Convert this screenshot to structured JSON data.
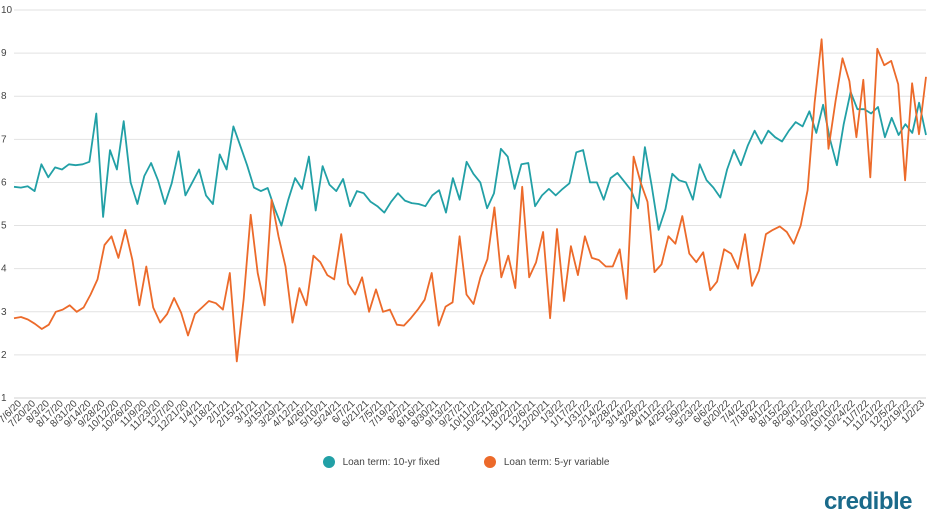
{
  "chart_data": {
    "type": "line",
    "ylim": [
      1,
      10
    ],
    "y_ticks": [
      "1",
      "2",
      "3",
      "4",
      "5",
      "6",
      "7",
      "8",
      "9",
      "10"
    ],
    "grid": true,
    "legend_position": "bottom",
    "x_tick_labels": [
      "7/6/20",
      "7/20/20",
      "8/3/20",
      "8/17/20",
      "8/31/20",
      "9/14/20",
      "9/28/20",
      "10/12/20",
      "10/26/20",
      "11/9/20",
      "11/23/20",
      "12/7/20",
      "12/21/20",
      "1/4/21",
      "1/18/21",
      "2/1/21",
      "2/15/21",
      "3/1/21",
      "3/15/21",
      "3/29/21",
      "4/12/21",
      "4/26/21",
      "5/10/21",
      "5/24/21",
      "6/7/21",
      "6/21/21",
      "7/5/21",
      "7/19/21",
      "8/2/21",
      "8/16/21",
      "8/30/21",
      "9/13/21",
      "9/27/21",
      "10/11/21",
      "10/25/21",
      "11/8/21",
      "11/22/21",
      "12/6/21",
      "12/20/21",
      "1/3/22",
      "1/17/22",
      "1/31/22",
      "2/14/22",
      "2/28/22",
      "3/14/22",
      "3/28/22",
      "4/11/22",
      "4/25/22",
      "5/9/22",
      "5/23/22",
      "6/6/22",
      "6/20/22",
      "7/4/22",
      "7/18/22",
      "8/1/22",
      "8/15/22",
      "8/29/22",
      "9/12/22",
      "9/26/22",
      "10/10/22",
      "10/24/22",
      "11/7/22",
      "11/21/22",
      "12/5/22",
      "12/19/22",
      "1/2/23"
    ],
    "series": [
      {
        "name": "Loan term: 10-yr fixed",
        "color": "#22a0a6",
        "values": [
          5.9,
          5.88,
          5.91,
          5.8,
          6.42,
          6.12,
          6.35,
          6.3,
          6.42,
          6.4,
          6.42,
          6.48,
          7.6,
          5.2,
          6.75,
          6.3,
          7.42,
          6.0,
          5.5,
          6.15,
          6.45,
          6.05,
          5.5,
          5.98,
          6.72,
          5.7,
          6.0,
          6.3,
          5.7,
          5.5,
          6.65,
          6.3,
          7.3,
          6.85,
          6.4,
          5.88,
          5.8,
          5.87,
          5.4,
          5.0,
          5.6,
          6.1,
          5.85,
          6.6,
          5.35,
          6.38,
          5.95,
          5.8,
          6.08,
          5.45,
          5.8,
          5.75,
          5.55,
          5.45,
          5.3,
          5.55,
          5.75,
          5.58,
          5.52,
          5.5,
          5.45,
          5.7,
          5.82,
          5.3,
          6.1,
          5.6,
          6.48,
          6.2,
          6.0,
          5.4,
          5.75,
          6.78,
          6.6,
          5.85,
          6.42,
          6.45,
          5.45,
          5.7,
          5.85,
          5.7,
          5.85,
          5.98,
          6.7,
          6.75,
          6.0,
          6.0,
          5.6,
          6.1,
          6.22,
          6.02,
          5.82,
          5.4,
          6.82,
          5.92,
          4.9,
          5.38,
          6.2,
          6.05,
          6.0,
          5.6,
          6.42,
          6.05,
          5.88,
          5.65,
          6.3,
          6.75,
          6.4,
          6.85,
          7.2,
          6.9,
          7.2,
          7.05,
          6.95,
          7.2,
          7.4,
          7.3,
          7.65,
          7.15,
          7.8,
          7.0,
          6.4,
          7.35,
          8.1,
          7.7,
          7.7,
          7.6,
          7.75,
          7.05,
          7.5,
          7.1,
          7.35,
          7.15,
          7.85,
          7.1
        ]
      },
      {
        "name": "Loan term: 5-yr variable",
        "color": "#ec6a2a",
        "values": [
          2.85,
          2.88,
          2.82,
          2.72,
          2.6,
          2.7,
          3.0,
          3.05,
          3.15,
          3.0,
          3.1,
          3.4,
          3.75,
          4.55,
          4.75,
          4.25,
          4.9,
          4.2,
          3.15,
          4.05,
          3.1,
          2.75,
          2.95,
          3.32,
          2.98,
          2.45,
          2.95,
          3.1,
          3.25,
          3.2,
          3.05,
          3.9,
          1.85,
          3.3,
          5.25,
          3.9,
          3.15,
          5.6,
          4.75,
          4.05,
          2.75,
          3.55,
          3.15,
          4.3,
          4.15,
          3.85,
          3.75,
          4.8,
          3.65,
          3.4,
          3.8,
          3.0,
          3.52,
          3.0,
          3.05,
          2.7,
          2.68,
          2.85,
          3.05,
          3.28,
          3.9,
          2.68,
          3.12,
          3.22,
          4.75,
          3.4,
          3.18,
          3.8,
          4.22,
          5.42,
          3.8,
          4.3,
          3.55,
          5.9,
          3.8,
          4.15,
          4.85,
          2.85,
          4.92,
          3.25,
          4.52,
          3.85,
          4.75,
          4.25,
          4.2,
          4.05,
          4.05,
          4.45,
          3.3,
          6.6,
          6.0,
          5.55,
          3.92,
          4.1,
          4.75,
          4.58,
          5.22,
          4.35,
          4.15,
          4.38,
          3.5,
          3.7,
          4.45,
          4.35,
          4.0,
          4.8,
          3.6,
          3.95,
          4.8,
          4.9,
          4.98,
          4.85,
          4.58,
          5.0,
          5.82,
          7.85,
          9.32,
          6.78,
          7.88,
          8.88,
          8.35,
          7.05,
          8.38,
          6.12,
          9.1,
          8.72,
          8.82,
          8.28,
          6.05,
          8.3,
          7.12,
          8.45
        ]
      }
    ]
  },
  "brand": {
    "logo_text": "credible"
  }
}
